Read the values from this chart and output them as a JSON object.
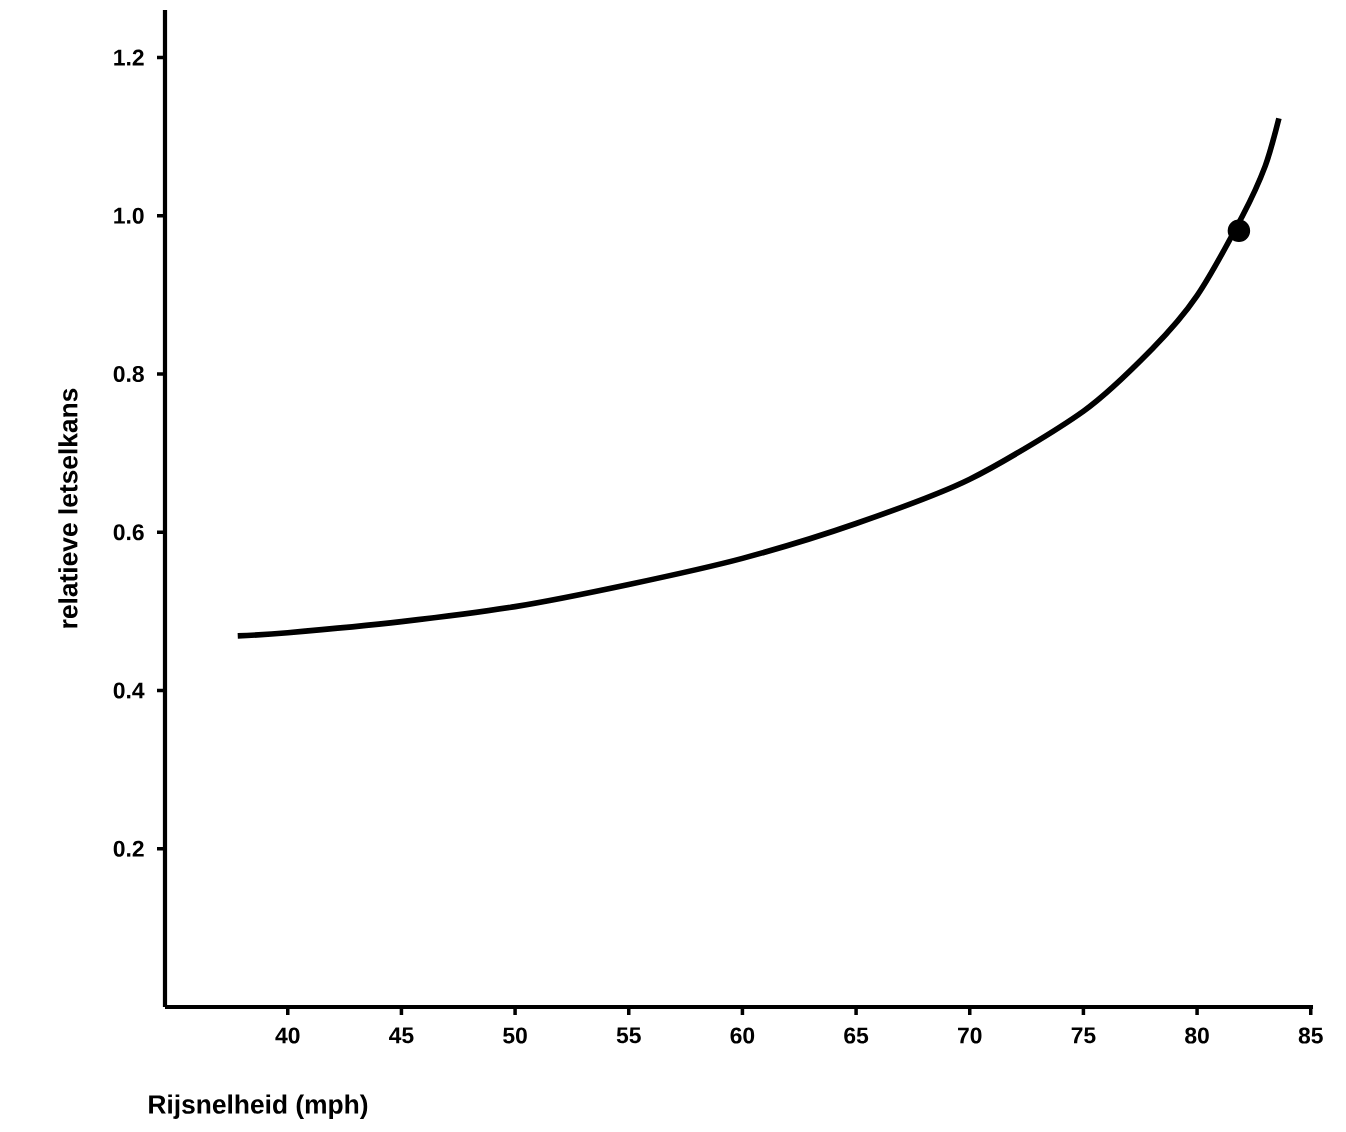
{
  "chart_data": {
    "type": "line",
    "xlabel": "Rijsnelheid (mph)",
    "ylabel": "relatieve letselkans",
    "xlim": [
      34.6,
      85.1
    ],
    "ylim": [
      0,
      1.26
    ],
    "xticks": [
      40,
      45,
      50,
      55,
      60,
      65,
      70,
      75,
      80,
      85
    ],
    "yticks": [
      0.2,
      0.4,
      0.6,
      0.8,
      {
        "value": 1.0,
        "label": "1.0"
      },
      1.2
    ],
    "grid": false,
    "legend": false,
    "series": [
      {
        "color": "#000000",
        "marker": "none",
        "x": [
          37.8,
          40,
          45,
          50,
          55,
          60,
          65,
          70,
          75,
          78,
          80,
          82,
          83,
          83.6
        ],
        "values": [
          0.469,
          0.473,
          0.487,
          0.506,
          0.534,
          0.567,
          0.611,
          0.667,
          0.753,
          0.831,
          0.899,
          1.0,
          1.063,
          1.123
        ]
      },
      {
        "type": "scatter",
        "color": "#000000",
        "marker": "circle",
        "x": [
          81.84
        ],
        "values": [
          0.981
        ]
      }
    ]
  }
}
